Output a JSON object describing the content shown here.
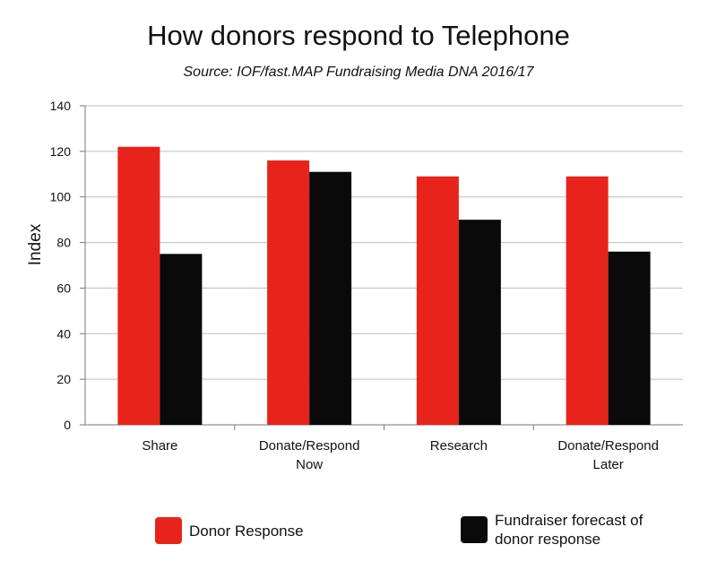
{
  "chart_data": {
    "type": "bar",
    "title": "How donors respond to Telephone",
    "subtitle": "Source: IOF/fast.MAP Fundraising Media DNA 2016/17",
    "categories": [
      [
        "Share"
      ],
      [
        "Donate/Respond",
        "Now"
      ],
      [
        "Research"
      ],
      [
        "Donate/Respond",
        "Later"
      ]
    ],
    "series": [
      {
        "name": "Donor Response",
        "values": [
          122,
          116,
          109,
          109
        ],
        "color": "#e8231b"
      },
      {
        "name": "Fundraiser forecast of donor response",
        "values": [
          75,
          111,
          90,
          76
        ],
        "color": "#0a0a0a"
      }
    ],
    "xlabel": "",
    "ylabel": "Index",
    "ylim": [
      0,
      140
    ],
    "yticks": [
      0,
      20,
      40,
      60,
      80,
      100,
      120,
      140
    ],
    "grid": true,
    "legend": [
      {
        "label_lines": [
          "Donor Response"
        ],
        "color": "#e8231b"
      },
      {
        "label_lines": [
          "Fundraiser forecast of",
          "donor response"
        ],
        "color": "#0a0a0a"
      }
    ]
  }
}
